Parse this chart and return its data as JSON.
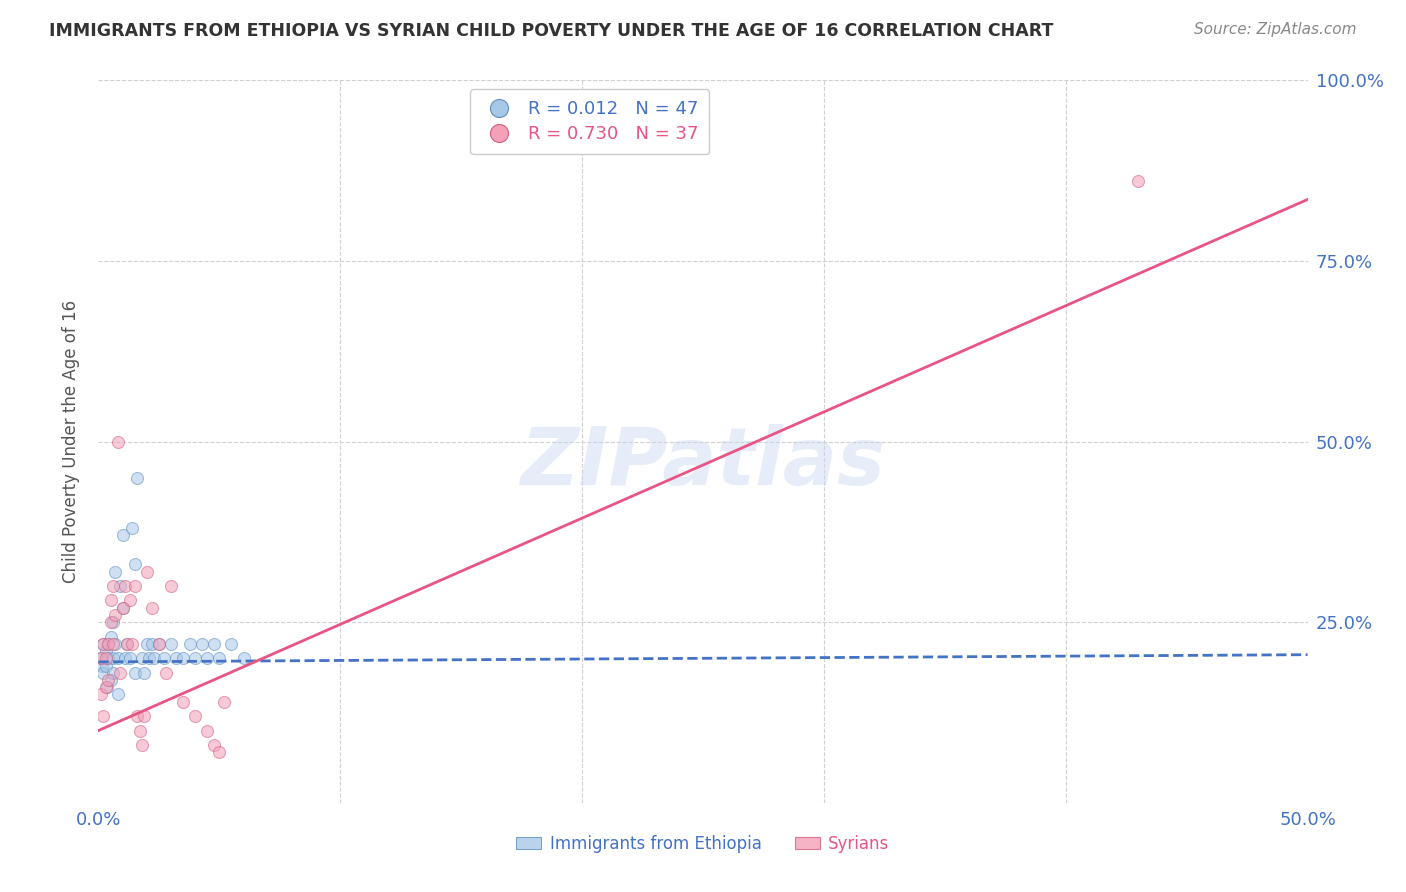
{
  "title": "IMMIGRANTS FROM ETHIOPIA VS SYRIAN CHILD POVERTY UNDER THE AGE OF 16 CORRELATION CHART",
  "source": "Source: ZipAtlas.com",
  "ylabel": "Child Poverty Under the Age of 16",
  "xlim": [
    0,
    0.5
  ],
  "ylim": [
    0,
    1.0
  ],
  "xticks": [
    0.0,
    0.1,
    0.2,
    0.3,
    0.4,
    0.5
  ],
  "xticklabels": [
    "0.0%",
    "",
    "",
    "",
    "",
    "50.0%"
  ],
  "yticks": [
    0.0,
    0.25,
    0.5,
    0.75,
    1.0
  ],
  "right_yticklabels": [
    "",
    "25.0%",
    "50.0%",
    "75.0%",
    "100.0%"
  ],
  "legend_entries": [
    {
      "label": "Immigrants from Ethiopia",
      "R": "0.012",
      "N": "47",
      "color": "#a8c8e8"
    },
    {
      "label": "Syrians",
      "R": "0.730",
      "N": "37",
      "color": "#f4a0b8"
    }
  ],
  "blue_scatter_x": [
    0.001,
    0.0015,
    0.002,
    0.002,
    0.003,
    0.003,
    0.0035,
    0.004,
    0.004,
    0.005,
    0.005,
    0.006,
    0.006,
    0.006,
    0.007,
    0.007,
    0.008,
    0.008,
    0.009,
    0.01,
    0.01,
    0.011,
    0.012,
    0.013,
    0.014,
    0.015,
    0.015,
    0.016,
    0.018,
    0.019,
    0.02,
    0.021,
    0.022,
    0.023,
    0.025,
    0.027,
    0.03,
    0.032,
    0.035,
    0.038,
    0.04,
    0.043,
    0.045,
    0.048,
    0.05,
    0.055,
    0.06
  ],
  "blue_scatter_y": [
    0.2,
    0.19,
    0.18,
    0.22,
    0.19,
    0.21,
    0.16,
    0.2,
    0.22,
    0.17,
    0.23,
    0.2,
    0.25,
    0.18,
    0.32,
    0.22,
    0.2,
    0.15,
    0.3,
    0.37,
    0.27,
    0.2,
    0.22,
    0.2,
    0.38,
    0.33,
    0.18,
    0.45,
    0.2,
    0.18,
    0.22,
    0.2,
    0.22,
    0.2,
    0.22,
    0.2,
    0.22,
    0.2,
    0.2,
    0.22,
    0.2,
    0.22,
    0.2,
    0.22,
    0.2,
    0.22,
    0.2
  ],
  "pink_scatter_x": [
    0.001,
    0.001,
    0.002,
    0.002,
    0.003,
    0.003,
    0.004,
    0.004,
    0.005,
    0.005,
    0.006,
    0.006,
    0.007,
    0.008,
    0.009,
    0.01,
    0.011,
    0.012,
    0.013,
    0.014,
    0.015,
    0.016,
    0.017,
    0.018,
    0.019,
    0.02,
    0.022,
    0.025,
    0.028,
    0.03,
    0.035,
    0.04,
    0.045,
    0.048,
    0.05,
    0.052,
    0.43
  ],
  "pink_scatter_y": [
    0.15,
    0.2,
    0.12,
    0.22,
    0.16,
    0.2,
    0.22,
    0.17,
    0.25,
    0.28,
    0.22,
    0.3,
    0.26,
    0.5,
    0.18,
    0.27,
    0.3,
    0.22,
    0.28,
    0.22,
    0.3,
    0.12,
    0.1,
    0.08,
    0.12,
    0.32,
    0.27,
    0.22,
    0.18,
    0.3,
    0.14,
    0.12,
    0.1,
    0.08,
    0.07,
    0.14,
    0.86
  ],
  "blue_line": {
    "x0": 0.0,
    "x1": 0.5,
    "y0": 0.195,
    "y1": 0.205
  },
  "pink_line": {
    "x0": 0.0,
    "x1": 0.5,
    "y0": 0.1,
    "y1": 0.835
  },
  "watermark": "ZIPatlas",
  "scatter_alpha": 0.55,
  "scatter_size": 75,
  "scatter_edgewidth": 0.8,
  "blue_color": "#a8c8e8",
  "blue_edge": "#6090c0",
  "pink_color": "#f4a0b8",
  "pink_edge": "#d06080",
  "blue_line_color": "#4472c4",
  "pink_line_color": "#e85585",
  "grid_color": "#d0d0d0",
  "axis_color": "#4472c4",
  "title_color": "#333333",
  "bg_color": "#ffffff"
}
